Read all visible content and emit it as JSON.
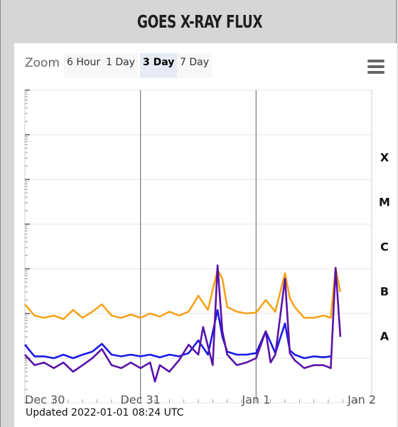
{
  "title": "GOES X-RAY FLUX",
  "zoom": {
    "label": "Zoom",
    "buttons": [
      "6 Hour",
      "1 Day",
      "3 Day",
      "7 Day"
    ],
    "selected": "3 Day"
  },
  "updated_text": "Updated 2022-01-01 08:24 UTC",
  "colors": {
    "long_band": "#f5a31a",
    "short_band_blue": "#1a1ae6",
    "short_band_purple": "#5a12a8"
  },
  "chart_data": {
    "type": "line",
    "title": "",
    "xlabel": "",
    "ylabel": "",
    "x_ticks": [
      "Dec 30",
      "Dec 31",
      "Jan 1",
      "Jan 2"
    ],
    "xlim": [
      "2021-12-30T00:00Z",
      "2022-01-02T00:00Z"
    ],
    "y_scale": "log",
    "ylim": [
      1e-09,
      0.01
    ],
    "flare_classes": [
      {
        "label": "X",
        "value": 0.0001
      },
      {
        "label": "M",
        "value": 1e-05
      },
      {
        "label": "C",
        "value": 1e-06
      },
      {
        "label": "B",
        "value": 1e-07
      },
      {
        "label": "A",
        "value": 1e-08
      }
    ],
    "grid": true,
    "legend": "none",
    "series": [
      {
        "color": "#f5a31a",
        "points": [
          [
            "2021-12-30T00:00Z",
            1.6e-07
          ],
          [
            "2021-12-30T02:00Z",
            9e-08
          ],
          [
            "2021-12-30T04:00Z",
            8e-08
          ],
          [
            "2021-12-30T06:00Z",
            9e-08
          ],
          [
            "2021-12-30T08:00Z",
            7.5e-08
          ],
          [
            "2021-12-30T10:00Z",
            1.2e-07
          ],
          [
            "2021-12-30T12:00Z",
            8e-08
          ],
          [
            "2021-12-30T14:00Z",
            1.1e-07
          ],
          [
            "2021-12-30T16:00Z",
            1.6e-07
          ],
          [
            "2021-12-30T18:00Z",
            9e-08
          ],
          [
            "2021-12-30T20:00Z",
            8e-08
          ],
          [
            "2021-12-30T22:00Z",
            9.5e-08
          ],
          [
            "2021-12-31T00:00Z",
            8e-08
          ],
          [
            "2021-12-31T02:00Z",
            1e-07
          ],
          [
            "2021-12-31T04:00Z",
            8.5e-08
          ],
          [
            "2021-12-31T06:00Z",
            1.1e-07
          ],
          [
            "2021-12-31T08:00Z",
            9e-08
          ],
          [
            "2021-12-31T10:00Z",
            1.1e-07
          ],
          [
            "2021-12-31T12:00Z",
            2.5e-07
          ],
          [
            "2021-12-31T14:00Z",
            1.2e-07
          ],
          [
            "2021-12-31T16:00Z",
            9.5e-07
          ],
          [
            "2021-12-31T17:00Z",
            6e-07
          ],
          [
            "2021-12-31T18:00Z",
            1.4e-07
          ],
          [
            "2021-12-31T20:00Z",
            1.1e-07
          ],
          [
            "2021-12-31T22:00Z",
            1e-07
          ],
          [
            "2022-01-01T00:00Z",
            1.05e-07
          ],
          [
            "2022-01-01T02:00Z",
            2e-07
          ],
          [
            "2022-01-01T04:00Z",
            1.1e-07
          ],
          [
            "2022-01-01T06:00Z",
            8e-07
          ],
          [
            "2022-01-01T07:00Z",
            2.2e-07
          ],
          [
            "2022-01-01T08:00Z",
            1.4e-07
          ],
          [
            "2022-01-01T10:00Z",
            8e-08
          ],
          [
            "2022-01-01T12:00Z",
            8e-08
          ],
          [
            "2022-01-01T14:00Z",
            9e-08
          ],
          [
            "2022-01-01T15:30Z",
            8e-08
          ],
          [
            "2022-01-01T16:30Z",
            1.05e-06
          ],
          [
            "2022-01-01T17:30Z",
            3e-07
          ]
        ]
      },
      {
        "color": "#1a1ae6",
        "points": [
          [
            "2021-12-30T00:00Z",
            2e-08
          ],
          [
            "2021-12-30T02:00Z",
            1.1e-08
          ],
          [
            "2021-12-30T04:00Z",
            1.1e-08
          ],
          [
            "2021-12-30T06:00Z",
            1e-08
          ],
          [
            "2021-12-30T08:00Z",
            1.2e-08
          ],
          [
            "2021-12-30T10:00Z",
            1e-08
          ],
          [
            "2021-12-30T12:00Z",
            1.2e-08
          ],
          [
            "2021-12-30T14:00Z",
            1.4e-08
          ],
          [
            "2021-12-30T16:00Z",
            2.1e-08
          ],
          [
            "2021-12-30T18:00Z",
            1.2e-08
          ],
          [
            "2021-12-30T20:00Z",
            1.1e-08
          ],
          [
            "2021-12-30T22:00Z",
            1.2e-08
          ],
          [
            "2021-12-31T00:00Z",
            1.1e-08
          ],
          [
            "2021-12-31T02:00Z",
            1.2e-08
          ],
          [
            "2021-12-31T04:00Z",
            1.05e-08
          ],
          [
            "2021-12-31T06:00Z",
            1.2e-08
          ],
          [
            "2021-12-31T08:00Z",
            1.1e-08
          ],
          [
            "2021-12-31T10:00Z",
            1.3e-08
          ],
          [
            "2021-12-31T12:00Z",
            2.5e-08
          ],
          [
            "2021-12-31T14:00Z",
            1.2e-08
          ],
          [
            "2021-12-31T16:00Z",
            1.2e-07
          ],
          [
            "2021-12-31T17:00Z",
            3e-08
          ],
          [
            "2021-12-31T18:00Z",
            1.4e-08
          ],
          [
            "2021-12-31T20:00Z",
            1.2e-08
          ],
          [
            "2021-12-31T22:00Z",
            1.2e-08
          ],
          [
            "2022-01-01T00:00Z",
            1.3e-08
          ],
          [
            "2022-01-01T02:00Z",
            4e-08
          ],
          [
            "2022-01-01T04:00Z",
            1.3e-08
          ],
          [
            "2022-01-01T06:00Z",
            6e-08
          ],
          [
            "2022-01-01T07:00Z",
            1.5e-08
          ],
          [
            "2022-01-01T08:00Z",
            1.2e-08
          ],
          [
            "2022-01-01T10:00Z",
            1e-08
          ],
          [
            "2022-01-01T12:00Z",
            1.1e-08
          ],
          [
            "2022-01-01T14:00Z",
            1.05e-08
          ],
          [
            "2022-01-01T15:30Z",
            1.1e-08
          ]
        ]
      },
      {
        "color": "#5a12a8",
        "points": [
          [
            "2021-12-30T00:00Z",
            1.2e-08
          ],
          [
            "2021-12-30T02:00Z",
            7e-09
          ],
          [
            "2021-12-30T04:00Z",
            8e-09
          ],
          [
            "2021-12-30T06:00Z",
            6e-09
          ],
          [
            "2021-12-30T08:00Z",
            8e-09
          ],
          [
            "2021-12-30T10:00Z",
            5e-09
          ],
          [
            "2021-12-30T12:00Z",
            7e-09
          ],
          [
            "2021-12-30T14:00Z",
            1e-08
          ],
          [
            "2021-12-30T16:00Z",
            1.6e-08
          ],
          [
            "2021-12-30T18:00Z",
            7e-09
          ],
          [
            "2021-12-30T20:00Z",
            6e-09
          ],
          [
            "2021-12-30T22:00Z",
            8e-09
          ],
          [
            "2021-12-31T00:00Z",
            6e-09
          ],
          [
            "2021-12-31T02:00Z",
            8e-09
          ],
          [
            "2021-12-31T03:00Z",
            3e-09
          ],
          [
            "2021-12-31T04:00Z",
            7e-09
          ],
          [
            "2021-12-31T06:00Z",
            5e-09
          ],
          [
            "2021-12-31T08:00Z",
            9e-09
          ],
          [
            "2021-12-31T10:00Z",
            2e-08
          ],
          [
            "2021-12-31T12:00Z",
            1.2e-08
          ],
          [
            "2021-12-31T13:00Z",
            5e-08
          ],
          [
            "2021-12-31T15:00Z",
            7e-09
          ],
          [
            "2021-12-31T16:00Z",
            1.2e-06
          ],
          [
            "2021-12-31T17:00Z",
            4e-08
          ],
          [
            "2021-12-31T18:00Z",
            1.2e-08
          ],
          [
            "2021-12-31T20:00Z",
            7e-09
          ],
          [
            "2021-12-31T22:00Z",
            8e-09
          ],
          [
            "2022-01-01T00:00Z",
            1e-08
          ],
          [
            "2022-01-01T02:00Z",
            4e-08
          ],
          [
            "2022-01-01T03:00Z",
            8e-09
          ],
          [
            "2022-01-01T04:00Z",
            1.2e-08
          ],
          [
            "2022-01-01T06:00Z",
            6e-07
          ],
          [
            "2022-01-01T07:00Z",
            1.3e-08
          ],
          [
            "2022-01-01T08:00Z",
            9e-09
          ],
          [
            "2022-01-01T10:00Z",
            6e-09
          ],
          [
            "2022-01-01T12:00Z",
            7e-09
          ],
          [
            "2022-01-01T14:00Z",
            7e-09
          ],
          [
            "2022-01-01T15:30Z",
            6e-09
          ],
          [
            "2022-01-01T16:30Z",
            1.05e-06
          ],
          [
            "2022-01-01T17:30Z",
            3e-08
          ]
        ]
      }
    ]
  }
}
